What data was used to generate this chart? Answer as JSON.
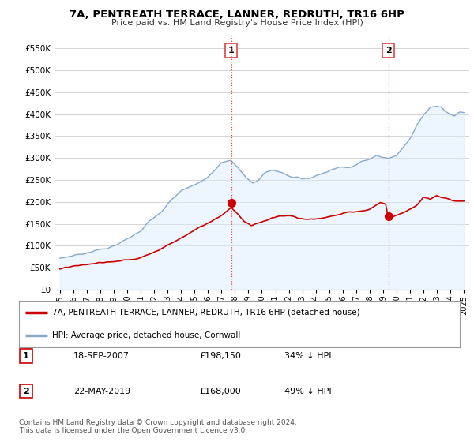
{
  "title": "7A, PENTREATH TERRACE, LANNER, REDRUTH, TR16 6HP",
  "subtitle": "Price paid vs. HM Land Registry's House Price Index (HPI)",
  "ylabel_ticks": [
    "£0",
    "£50K",
    "£100K",
    "£150K",
    "£200K",
    "£250K",
    "£300K",
    "£350K",
    "£400K",
    "£450K",
    "£500K",
    "£550K"
  ],
  "ytick_values": [
    0,
    50000,
    100000,
    150000,
    200000,
    250000,
    300000,
    350000,
    400000,
    450000,
    500000,
    550000
  ],
  "ylim": [
    0,
    580000
  ],
  "sale1_x": 2007.72,
  "sale2_x": 2019.39,
  "sale1_y": 198150,
  "sale2_y": 168000,
  "legend_line1": "7A, PENTREATH TERRACE, LANNER, REDRUTH, TR16 6HP (detached house)",
  "legend_line2": "HPI: Average price, detached house, Cornwall",
  "footnote": "Contains HM Land Registry data © Crown copyright and database right 2024.\nThis data is licensed under the Open Government Licence v3.0.",
  "table_rows": [
    [
      "1",
      "18-SEP-2007",
      "£198,150",
      "34% ↓ HPI"
    ],
    [
      "2",
      "22-MAY-2019",
      "£168,000",
      "49% ↓ HPI"
    ]
  ],
  "line_color_red": "#cc0000",
  "line_color_blue": "#88aacc",
  "fill_color_blue": "#ddeeff",
  "vline_color": "#dd4444",
  "bg_color": "#ffffff",
  "grid_color": "#cccccc",
  "xlim_left": 1994.6,
  "xlim_right": 2025.4
}
